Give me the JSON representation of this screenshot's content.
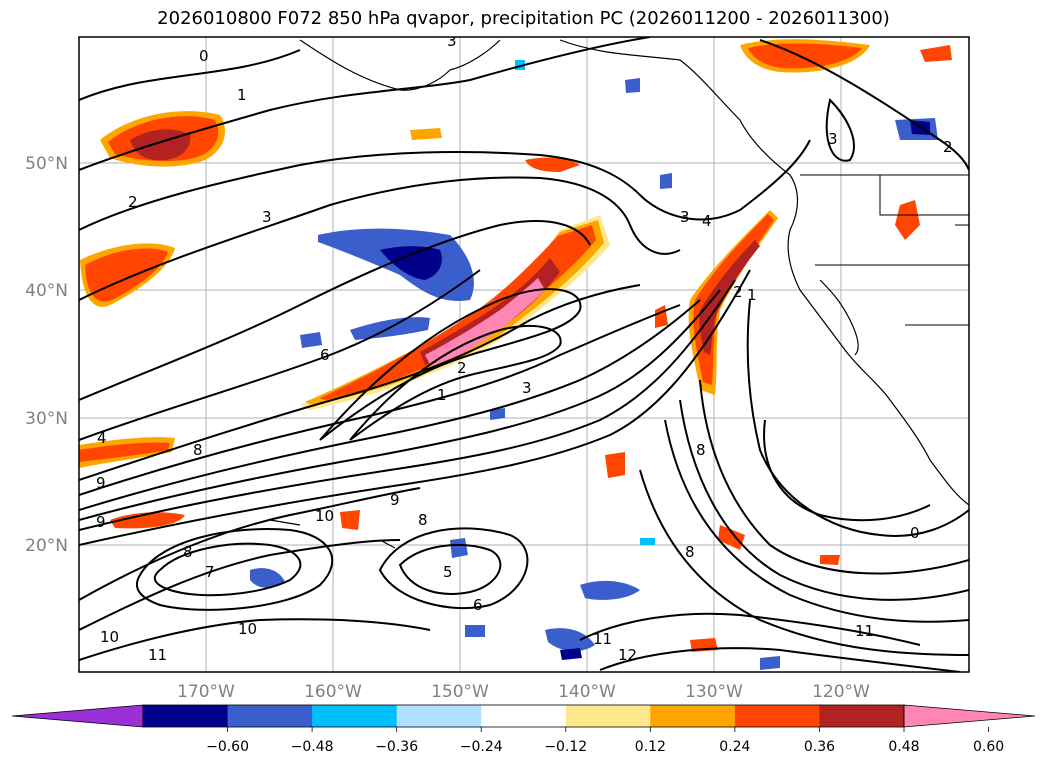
{
  "title": "2026010800 F072 850 hPa qvapor, precipitation PC (2026011200 - 2026011300)",
  "lat_labels": [
    "50°N",
    "40°N",
    "30°N",
    "20°N"
  ],
  "lon_labels": [
    "170°W",
    "160°W",
    "150°W",
    "140°W",
    "130°W",
    "120°W"
  ],
  "contour_labels": [
    "0",
    "1",
    "2",
    "3",
    "4",
    "6",
    "8",
    "9",
    "10",
    "11",
    "12",
    "7",
    "5",
    "1",
    "2",
    "3",
    "3",
    "4",
    "1",
    "0",
    "2",
    "3",
    "4",
    "6",
    "8",
    "9",
    "10",
    "11",
    "8"
  ],
  "colorbar": {
    "ticks": [
      "−0.60",
      "−0.48",
      "−0.36",
      "−0.24",
      "−0.12",
      "0.12",
      "0.24",
      "0.36",
      "0.48",
      "0.60"
    ],
    "colors": [
      "#9b30d9",
      "#00008b",
      "#3a5fcd",
      "#00bfff",
      "#b0e0ff",
      "#ffffff",
      "#ffe88c",
      "#ffa500",
      "#ff4500",
      "#b22222",
      "#ff86b4"
    ]
  },
  "colors": {
    "neg_dark": "#00008b",
    "neg_mid": "#3a5fcd",
    "neg_light": "#00bfff",
    "neg_pale": "#b0e0ff",
    "pos_pale": "#ffe88c",
    "pos_light": "#ffa500",
    "pos_mid": "#ff4500",
    "pos_dark": "#b22222",
    "pos_top": "#ff86b4"
  }
}
